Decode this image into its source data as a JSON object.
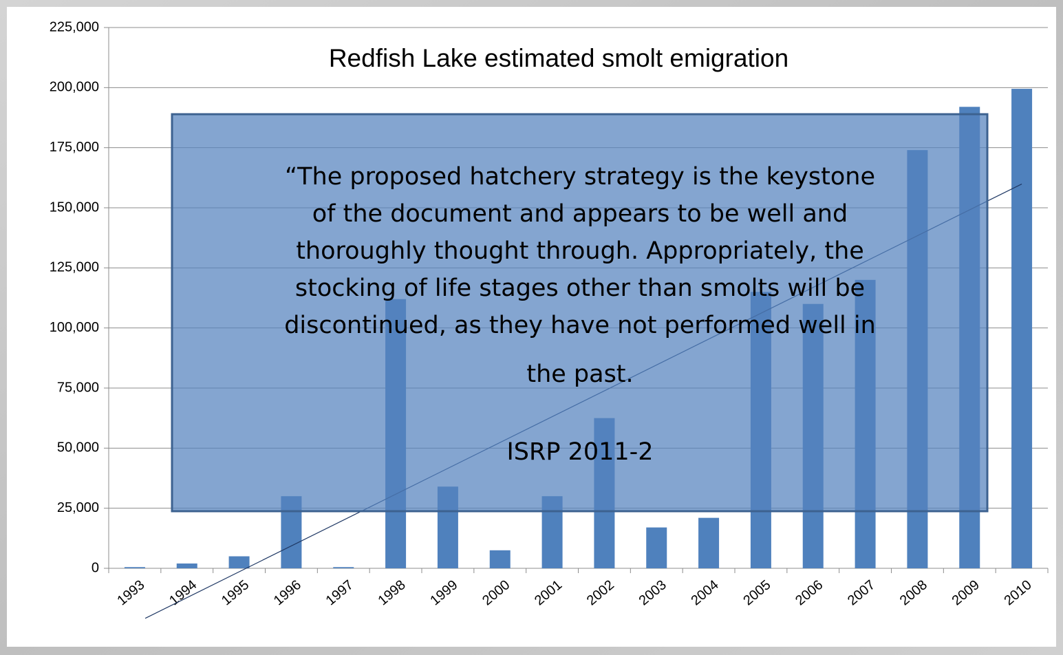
{
  "chart_data": {
    "type": "bar",
    "title": "Redfish Lake estimated smolt emigration",
    "categories": [
      "1993",
      "1994",
      "1995",
      "1996",
      "1997",
      "1998",
      "1999",
      "2000",
      "2001",
      "2002",
      "2003",
      "2004",
      "2005",
      "2006",
      "2007",
      "2008",
      "2009",
      "2010"
    ],
    "values": [
      500,
      2000,
      5000,
      30000,
      500,
      112000,
      34000,
      7500,
      30000,
      62500,
      17000,
      21000,
      115000,
      110000,
      120000,
      174000,
      192000,
      199500
    ],
    "color": "#4f81bd",
    "ylim": [
      0,
      225000
    ],
    "yticks": [
      0,
      {
        "value": 25000,
        "label": "25,000"
      },
      {
        "value": 50000,
        "label": "50,000"
      },
      {
        "value": 75000,
        "label": "75,000"
      },
      {
        "value": 100000,
        "label": "100,000"
      },
      {
        "value": 125000,
        "label": "125,000"
      },
      {
        "value": 150000,
        "label": "150,000"
      },
      {
        "value": 175000,
        "label": "175,000"
      },
      {
        "value": 200000,
        "label": "200,000"
      },
      {
        "value": 225000,
        "label": "225,000"
      }
    ],
    "grid": true,
    "trendline": "linear",
    "annotation": {
      "quote_lines": [
        "“The proposed hatchery strategy is the keystone",
        "of the document and appears to be well and",
        "thoroughly thought through.  Appropriately, the",
        "stocking of life stages other than smolts will be",
        "discontinued, as they have not performed well in",
        "the past."
      ],
      "citation": "ISRP 2011-2"
    }
  }
}
